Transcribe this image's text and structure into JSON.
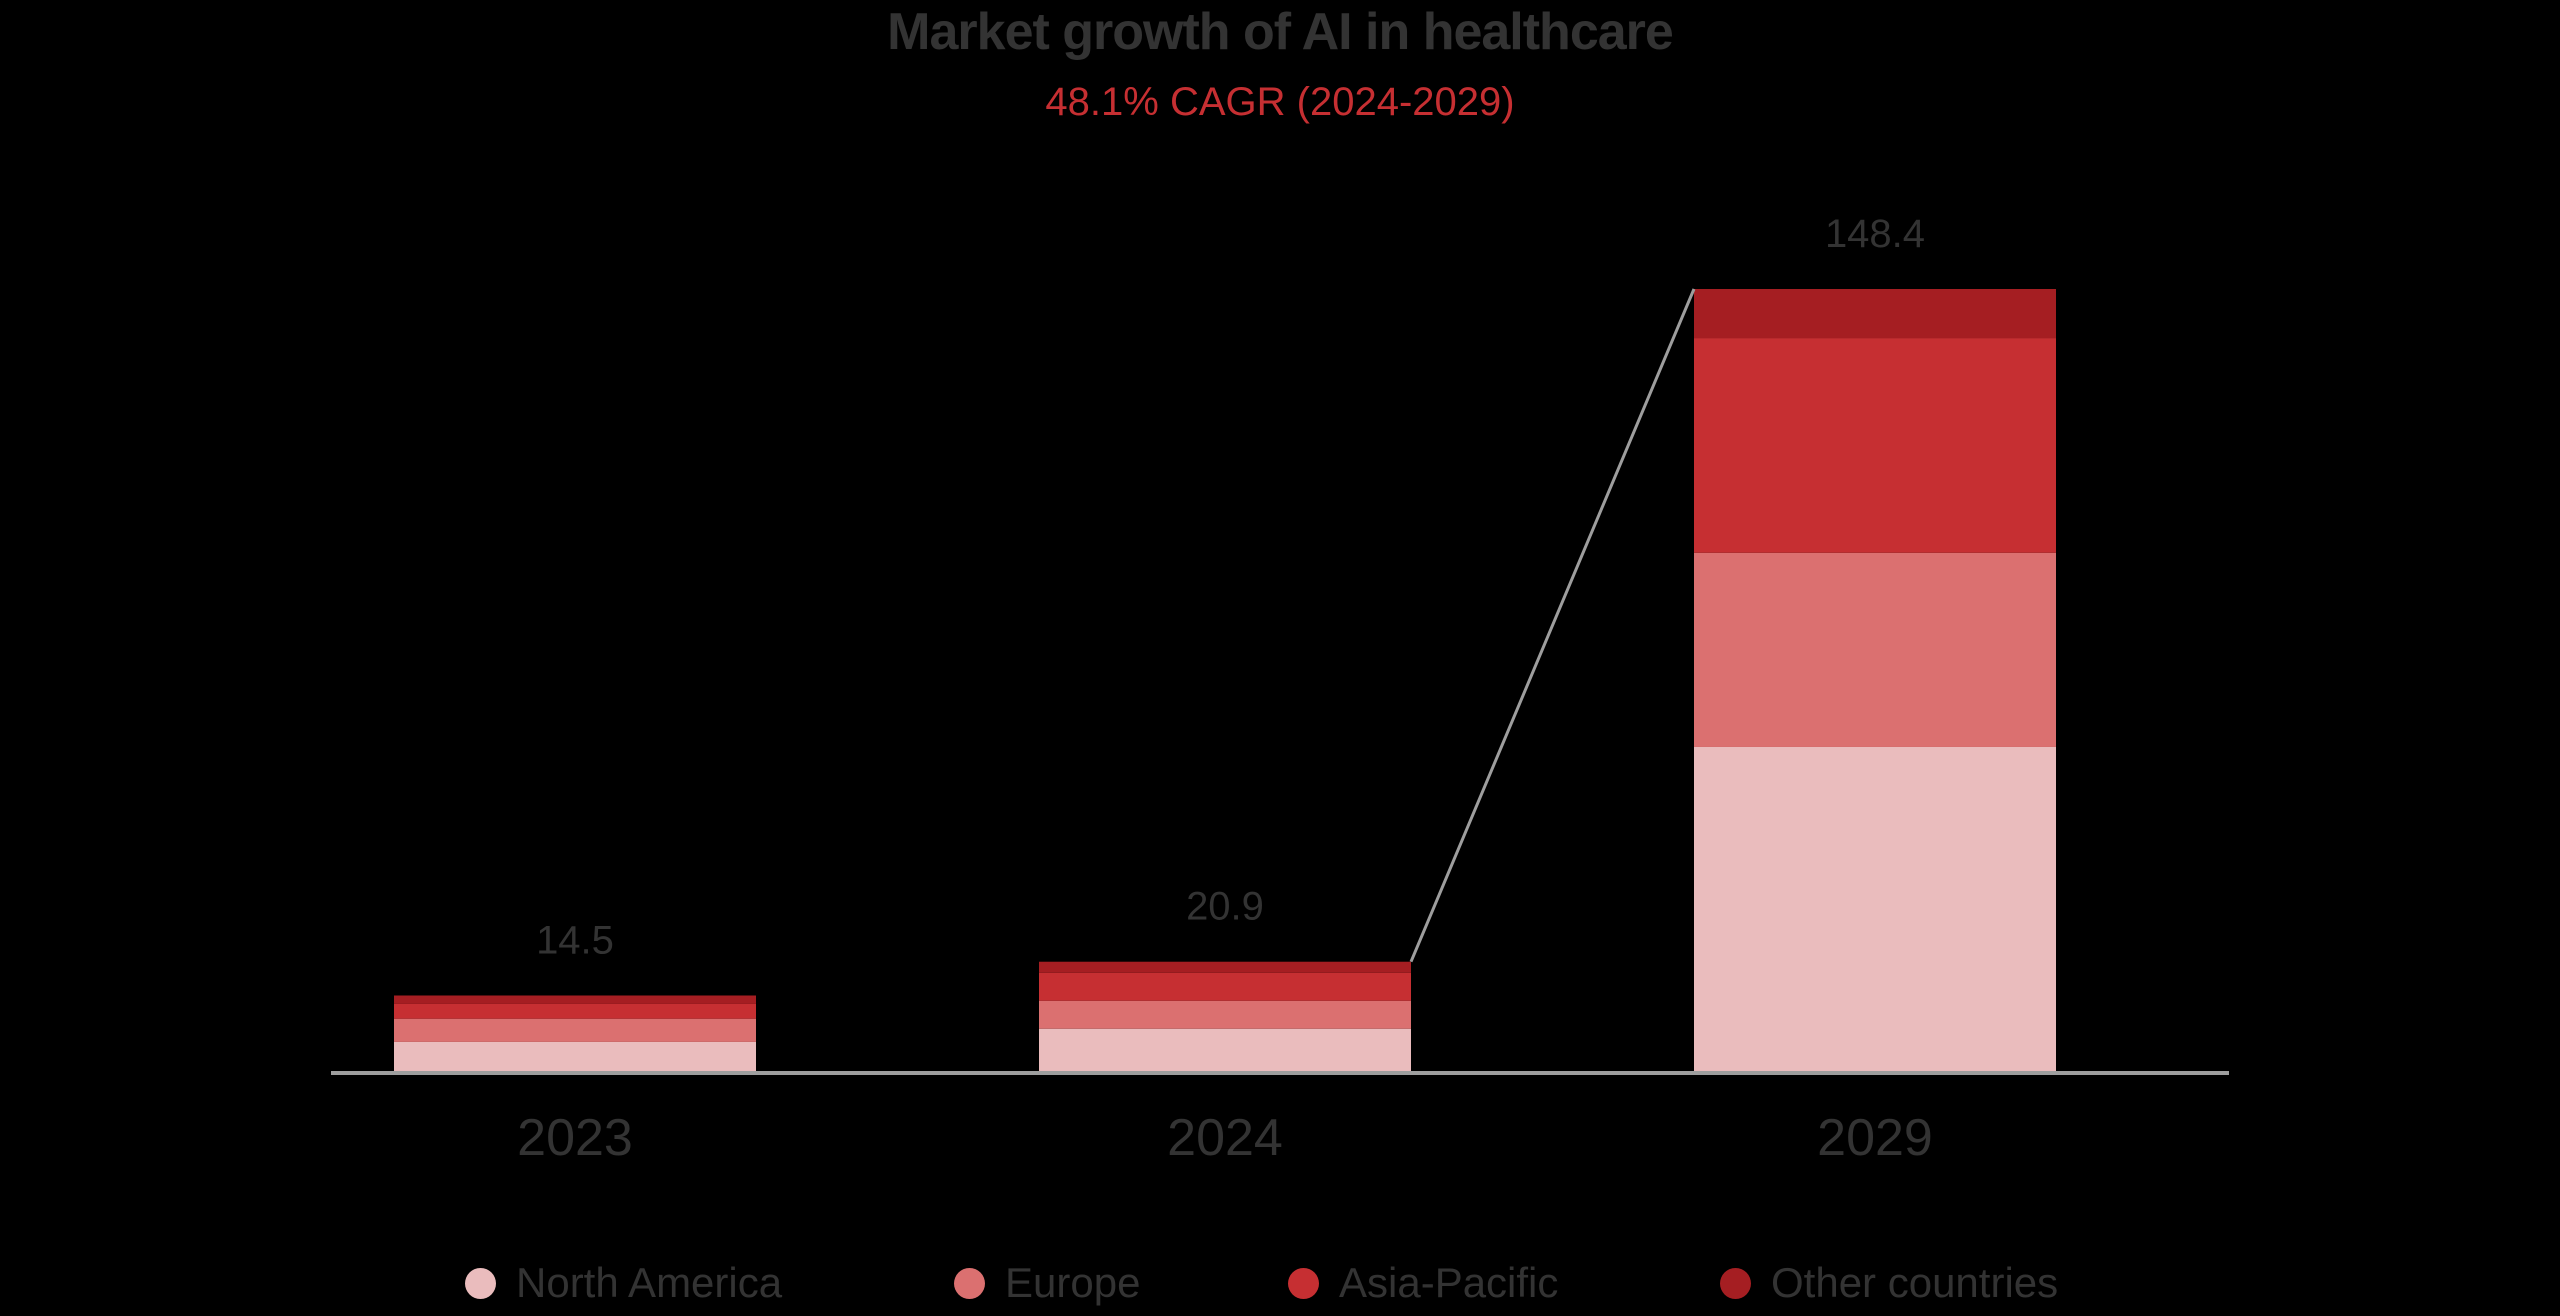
{
  "header": {
    "title": "Market growth of AI in healthcare",
    "subtitle": "48.1% CAGR (2024-2029)"
  },
  "colors": {
    "background": "#000000",
    "text": "#333333",
    "accent": "#c62f32",
    "axis": "#9e9e9e",
    "north_america": "#eabcbd",
    "europe": "#db7070",
    "asia_pacific": "#c62f32",
    "other_countries": "#a51e22"
  },
  "legend": {
    "items": [
      {
        "label": "North America",
        "color": "#eabcbd"
      },
      {
        "label": "Europe",
        "color": "#db7070"
      },
      {
        "label": "Asia-Pacific",
        "color": "#c62f32"
      },
      {
        "label": "Other countries",
        "color": "#a51e22"
      }
    ]
  },
  "chart_data": {
    "type": "bar",
    "stacked": true,
    "title": "Market growth of AI in healthcare",
    "subtitle": "48.1% CAGR (2024-2029)",
    "xlabel": "",
    "ylabel": "",
    "categories": [
      "2023",
      "2024",
      "2029"
    ],
    "totals": [
      14.5,
      20.9,
      148.4
    ],
    "total_labels": [
      "14.5",
      "20.9",
      "148.4"
    ],
    "series": [
      {
        "name": "North America",
        "color": "#eabcbd",
        "values": [
          5.7,
          8.2,
          61.6
        ]
      },
      {
        "name": "Europe",
        "color": "#db7070",
        "values": [
          4.4,
          5.3,
          36.8
        ]
      },
      {
        "name": "Asia-Pacific",
        "color": "#c62f32",
        "values": [
          2.8,
          5.3,
          40.7
        ]
      },
      {
        "name": "Other countries",
        "color": "#a51e22",
        "values": [
          1.6,
          2.1,
          9.3
        ]
      }
    ],
    "ylim": [
      0,
      148.4
    ],
    "grid": false,
    "y_axis_visible": false,
    "legend_position": "bottom",
    "annotations": [
      {
        "type": "connector-line",
        "from_category": "2024",
        "to_category": "2029",
        "note": "line connecting top of 2024 bar to top of 2029 bar"
      }
    ]
  }
}
